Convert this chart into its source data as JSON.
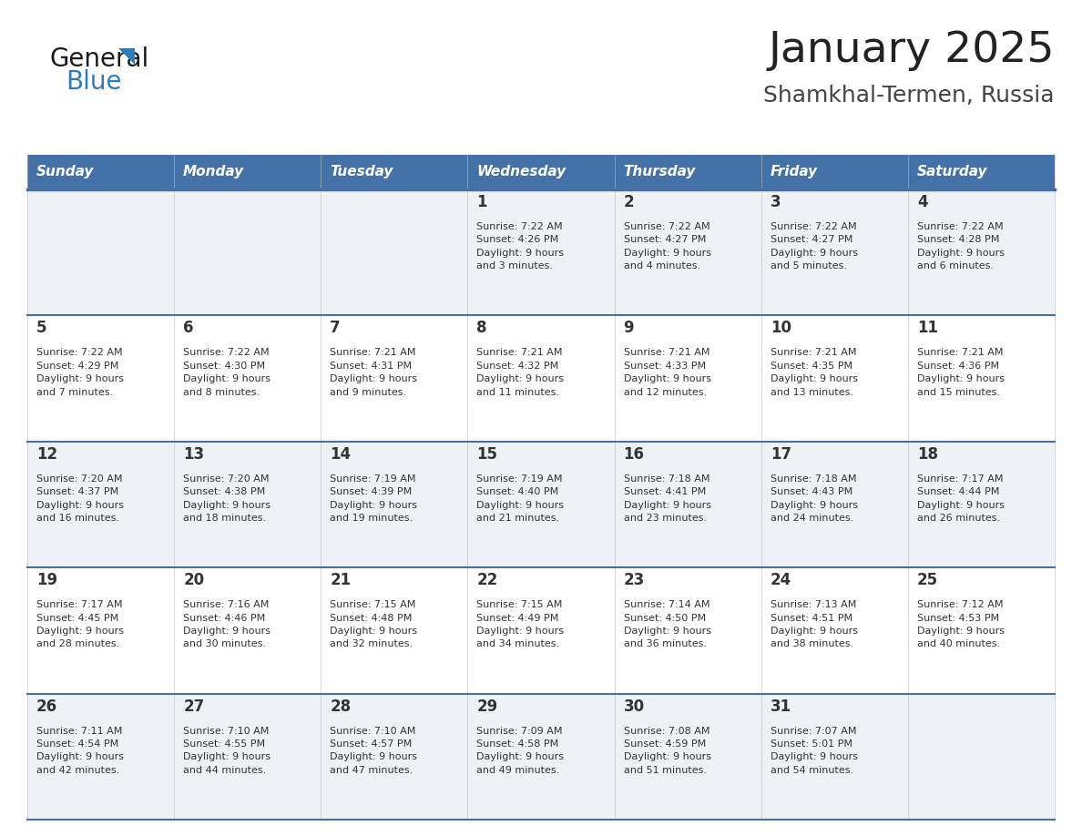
{
  "title": "January 2025",
  "subtitle": "Shamkhal-Termen, Russia",
  "days_of_week": [
    "Sunday",
    "Monday",
    "Tuesday",
    "Wednesday",
    "Thursday",
    "Friday",
    "Saturday"
  ],
  "header_bg": "#4472a8",
  "header_text_color": "#ffffff",
  "row_bg_odd": "#eef1f5",
  "row_bg_even": "#ffffff",
  "separator_color": "#4472a8",
  "day_number_color": "#333333",
  "text_color": "#333333",
  "logo_text_color": "#222222",
  "logo_blue_color": "#2a7dbf",
  "title_color": "#222222",
  "subtitle_color": "#444444",
  "calendar_data": [
    [
      {
        "day": null,
        "info": null
      },
      {
        "day": null,
        "info": null
      },
      {
        "day": null,
        "info": null
      },
      {
        "day": 1,
        "info": "Sunrise: 7:22 AM\nSunset: 4:26 PM\nDaylight: 9 hours\nand 3 minutes."
      },
      {
        "day": 2,
        "info": "Sunrise: 7:22 AM\nSunset: 4:27 PM\nDaylight: 9 hours\nand 4 minutes."
      },
      {
        "day": 3,
        "info": "Sunrise: 7:22 AM\nSunset: 4:27 PM\nDaylight: 9 hours\nand 5 minutes."
      },
      {
        "day": 4,
        "info": "Sunrise: 7:22 AM\nSunset: 4:28 PM\nDaylight: 9 hours\nand 6 minutes."
      }
    ],
    [
      {
        "day": 5,
        "info": "Sunrise: 7:22 AM\nSunset: 4:29 PM\nDaylight: 9 hours\nand 7 minutes."
      },
      {
        "day": 6,
        "info": "Sunrise: 7:22 AM\nSunset: 4:30 PM\nDaylight: 9 hours\nand 8 minutes."
      },
      {
        "day": 7,
        "info": "Sunrise: 7:21 AM\nSunset: 4:31 PM\nDaylight: 9 hours\nand 9 minutes."
      },
      {
        "day": 8,
        "info": "Sunrise: 7:21 AM\nSunset: 4:32 PM\nDaylight: 9 hours\nand 11 minutes."
      },
      {
        "day": 9,
        "info": "Sunrise: 7:21 AM\nSunset: 4:33 PM\nDaylight: 9 hours\nand 12 minutes."
      },
      {
        "day": 10,
        "info": "Sunrise: 7:21 AM\nSunset: 4:35 PM\nDaylight: 9 hours\nand 13 minutes."
      },
      {
        "day": 11,
        "info": "Sunrise: 7:21 AM\nSunset: 4:36 PM\nDaylight: 9 hours\nand 15 minutes."
      }
    ],
    [
      {
        "day": 12,
        "info": "Sunrise: 7:20 AM\nSunset: 4:37 PM\nDaylight: 9 hours\nand 16 minutes."
      },
      {
        "day": 13,
        "info": "Sunrise: 7:20 AM\nSunset: 4:38 PM\nDaylight: 9 hours\nand 18 minutes."
      },
      {
        "day": 14,
        "info": "Sunrise: 7:19 AM\nSunset: 4:39 PM\nDaylight: 9 hours\nand 19 minutes."
      },
      {
        "day": 15,
        "info": "Sunrise: 7:19 AM\nSunset: 4:40 PM\nDaylight: 9 hours\nand 21 minutes."
      },
      {
        "day": 16,
        "info": "Sunrise: 7:18 AM\nSunset: 4:41 PM\nDaylight: 9 hours\nand 23 minutes."
      },
      {
        "day": 17,
        "info": "Sunrise: 7:18 AM\nSunset: 4:43 PM\nDaylight: 9 hours\nand 24 minutes."
      },
      {
        "day": 18,
        "info": "Sunrise: 7:17 AM\nSunset: 4:44 PM\nDaylight: 9 hours\nand 26 minutes."
      }
    ],
    [
      {
        "day": 19,
        "info": "Sunrise: 7:17 AM\nSunset: 4:45 PM\nDaylight: 9 hours\nand 28 minutes."
      },
      {
        "day": 20,
        "info": "Sunrise: 7:16 AM\nSunset: 4:46 PM\nDaylight: 9 hours\nand 30 minutes."
      },
      {
        "day": 21,
        "info": "Sunrise: 7:15 AM\nSunset: 4:48 PM\nDaylight: 9 hours\nand 32 minutes."
      },
      {
        "day": 22,
        "info": "Sunrise: 7:15 AM\nSunset: 4:49 PM\nDaylight: 9 hours\nand 34 minutes."
      },
      {
        "day": 23,
        "info": "Sunrise: 7:14 AM\nSunset: 4:50 PM\nDaylight: 9 hours\nand 36 minutes."
      },
      {
        "day": 24,
        "info": "Sunrise: 7:13 AM\nSunset: 4:51 PM\nDaylight: 9 hours\nand 38 minutes."
      },
      {
        "day": 25,
        "info": "Sunrise: 7:12 AM\nSunset: 4:53 PM\nDaylight: 9 hours\nand 40 minutes."
      }
    ],
    [
      {
        "day": 26,
        "info": "Sunrise: 7:11 AM\nSunset: 4:54 PM\nDaylight: 9 hours\nand 42 minutes."
      },
      {
        "day": 27,
        "info": "Sunrise: 7:10 AM\nSunset: 4:55 PM\nDaylight: 9 hours\nand 44 minutes."
      },
      {
        "day": 28,
        "info": "Sunrise: 7:10 AM\nSunset: 4:57 PM\nDaylight: 9 hours\nand 47 minutes."
      },
      {
        "day": 29,
        "info": "Sunrise: 7:09 AM\nSunset: 4:58 PM\nDaylight: 9 hours\nand 49 minutes."
      },
      {
        "day": 30,
        "info": "Sunrise: 7:08 AM\nSunset: 4:59 PM\nDaylight: 9 hours\nand 51 minutes."
      },
      {
        "day": 31,
        "info": "Sunrise: 7:07 AM\nSunset: 5:01 PM\nDaylight: 9 hours\nand 54 minutes."
      },
      {
        "day": null,
        "info": null
      }
    ]
  ]
}
